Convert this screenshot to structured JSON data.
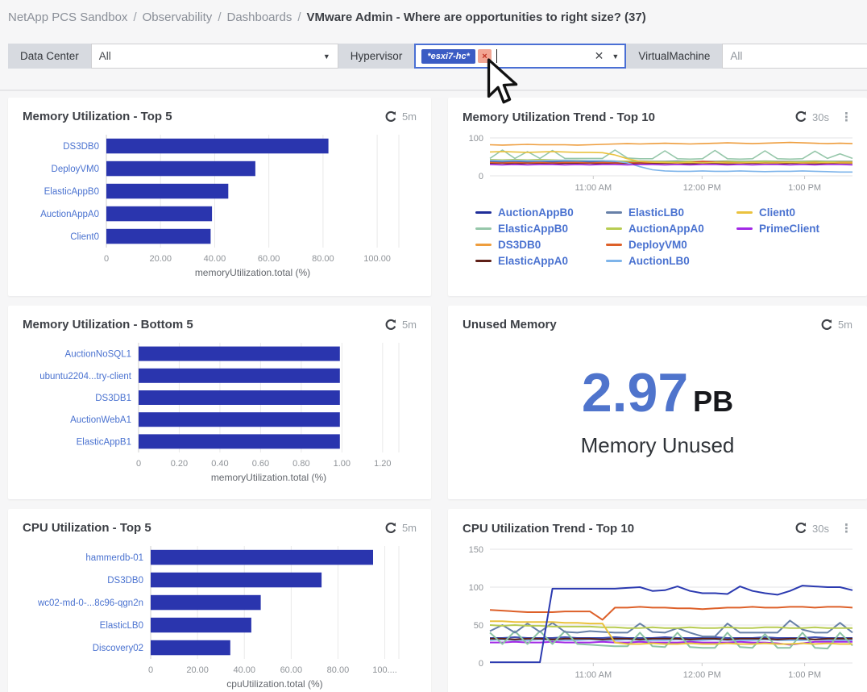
{
  "breadcrumb": {
    "separator": "/",
    "items": [
      {
        "label": "NetApp PCS Sandbox"
      },
      {
        "label": "Observability"
      },
      {
        "label": "Dashboards"
      }
    ],
    "current": "VMware Admin - Where are opportunities to right size? (37)"
  },
  "filters": {
    "data_center": {
      "label": "Data Center",
      "value": "All"
    },
    "hypervisor": {
      "label": "Hypervisor",
      "chip": "*esxi7-hc*",
      "delete_glyph": "×",
      "clear_glyph": "✕"
    },
    "virtual_machine": {
      "label": "VirtualMachine",
      "value": "All"
    }
  },
  "panels": {
    "mem_top5": {
      "title": "Memory Utilization - Top 5",
      "refresh": "5m"
    },
    "mem_trend": {
      "title": "Memory Utilization Trend - Top 10",
      "refresh": "30s"
    },
    "mem_bottom5": {
      "title": "Memory Utilization - Bottom 5",
      "refresh": "5m"
    },
    "unused_mem": {
      "title": "Unused Memory",
      "refresh": "5m",
      "value": "2.97",
      "unit": "PB",
      "caption": "Memory Unused"
    },
    "cpu_top5": {
      "title": "CPU Utilization - Top 5",
      "refresh": "5m"
    },
    "cpu_trend": {
      "title": "CPU Utilization Trend - Top 10",
      "refresh": "30s"
    }
  },
  "chart_data": {
    "mem_top5": {
      "type": "bar",
      "orientation": "horizontal",
      "title": "Memory Utilization - Top 5",
      "categories": [
        "DS3DB0",
        "DeployVM0",
        "ElasticAppB0",
        "AuctionAppA0",
        "Client0"
      ],
      "values": [
        82,
        55,
        45,
        39,
        38.5
      ],
      "xlabel": "memoryUtilization.total (%)",
      "xlim": [
        0,
        108
      ],
      "tick_values": [
        0,
        20,
        40,
        60,
        80,
        100
      ],
      "xticks": [
        "0",
        "20.00",
        "40.00",
        "60.00",
        "80.00",
        "100.00"
      ],
      "bar_color": "#2a35ae"
    },
    "mem_bottom5": {
      "type": "bar",
      "orientation": "horizontal",
      "title": "Memory Utilization - Bottom 5",
      "categories": [
        "AuctionNoSQL1",
        "ubuntu2204...try-client",
        "DS3DB1",
        "AuctionWebA1",
        "ElasticAppB1"
      ],
      "values": [
        0.99,
        0.99,
        0.99,
        0.99,
        0.99
      ],
      "xlabel": "memoryUtilization.total (%)",
      "xlim": [
        0,
        1.28
      ],
      "tick_values": [
        0,
        0.2,
        0.4,
        0.6,
        0.8,
        1.0,
        1.2
      ],
      "xticks": [
        "0",
        "0.20",
        "0.40",
        "0.60",
        "0.80",
        "1.00",
        "1.20"
      ],
      "bar_color": "#2a35ae"
    },
    "cpu_top5": {
      "type": "bar",
      "orientation": "horizontal",
      "title": "CPU Utilization - Top 5",
      "categories": [
        "hammerdb-01",
        "DS3DB0",
        "wc02-md-0-...8c96-qgn2n",
        "ElasticLB0",
        "Discovery02"
      ],
      "values": [
        95,
        73,
        47,
        43,
        34
      ],
      "xlabel": "cpuUtilization.total (%)",
      "xlim": [
        0,
        106
      ],
      "tick_values": [
        0,
        20,
        40,
        60,
        80,
        100
      ],
      "xticks": [
        "0",
        "20.00",
        "40.00",
        "60.00",
        "80.00",
        "100...."
      ],
      "bar_color": "#2a35ae"
    },
    "mem_trend": {
      "type": "line",
      "title": "Memory Utilization Trend - Top 10",
      "ylim": [
        0,
        100
      ],
      "yticks": [
        0,
        100
      ],
      "xticks": [
        "11:00 AM",
        "12:00 PM",
        "1:00 PM"
      ],
      "grid": true,
      "legend_position": "bottom",
      "series": [
        {
          "name": "AuctionAppB0",
          "color": "#1f2e99",
          "values": [
            37,
            36,
            37,
            36,
            37,
            36,
            36,
            37,
            36,
            36,
            35,
            36,
            36,
            37,
            36,
            36,
            37,
            36,
            36,
            36,
            37,
            36,
            36,
            37,
            36,
            36,
            37,
            36,
            36,
            36
          ]
        },
        {
          "name": "ElasticAppB0",
          "color": "#96c7aa",
          "values": [
            46,
            68,
            46,
            64,
            46,
            67,
            46,
            46,
            46,
            46,
            68,
            47,
            45,
            45,
            66,
            45,
            44,
            45,
            67,
            45,
            44,
            45,
            66,
            45,
            44,
            45,
            65,
            46,
            58,
            46
          ]
        },
        {
          "name": "DS3DB0",
          "color": "#ee9d3d",
          "values": [
            82,
            81,
            82,
            83,
            82,
            82,
            82,
            81,
            82,
            83,
            84,
            85,
            84,
            85,
            86,
            85,
            84,
            85,
            86,
            87,
            86,
            85,
            86,
            87,
            88,
            87,
            86,
            85,
            86,
            85
          ]
        },
        {
          "name": "ElasticAppA0",
          "color": "#5e1f17",
          "values": [
            33,
            33,
            32,
            33,
            33,
            32,
            33,
            33,
            33,
            32,
            33,
            33,
            32,
            33,
            33,
            33,
            32,
            33,
            33,
            32,
            33,
            33,
            33,
            32,
            33,
            33,
            32,
            33,
            33,
            33
          ]
        },
        {
          "name": "ElasticLB0",
          "color": "#6780a8",
          "values": [
            39,
            38,
            39,
            38,
            38,
            39,
            38,
            38,
            39,
            38,
            38,
            38,
            39,
            38,
            38,
            39,
            38,
            38,
            38,
            39,
            38,
            38,
            39,
            38,
            38,
            38,
            39,
            38,
            38,
            38
          ]
        },
        {
          "name": "AuctionAppA0",
          "color": "#b8cc52",
          "values": [
            43,
            42,
            43,
            42,
            43,
            42,
            41,
            41,
            40,
            40,
            39,
            38,
            38,
            37,
            37,
            37,
            38,
            37,
            37,
            38,
            37,
            37,
            38,
            37,
            37,
            37,
            38,
            37,
            37,
            37
          ]
        },
        {
          "name": "DeployVM0",
          "color": "#dd6029",
          "values": [
            35,
            34,
            35,
            34,
            35,
            34,
            35,
            35,
            34,
            35,
            34,
            35,
            34,
            35,
            35,
            34,
            35,
            38,
            36,
            35,
            34,
            35,
            34,
            35,
            35,
            34,
            35,
            34,
            35,
            35
          ]
        },
        {
          "name": "AuctionLB0",
          "color": "#7eb4ea",
          "values": [
            41,
            40,
            41,
            40,
            40,
            40,
            41,
            40,
            40,
            40,
            39,
            34,
            24,
            16,
            13,
            12,
            12,
            13,
            12,
            12,
            13,
            12,
            11,
            12,
            12,
            13,
            12,
            11,
            10,
            10
          ]
        },
        {
          "name": "Client0",
          "color": "#eac23e",
          "values": [
            63,
            64,
            63,
            62,
            63,
            64,
            63,
            62,
            62,
            61,
            55,
            45,
            38,
            36,
            35,
            34,
            35,
            34,
            35,
            34,
            34,
            35,
            34,
            34,
            35,
            34,
            34,
            35,
            34,
            34
          ]
        },
        {
          "name": "PrimeClient",
          "color": "#a229e6",
          "values": [
            30,
            29,
            30,
            29,
            30,
            30,
            29,
            30,
            29,
            30,
            30,
            29,
            30,
            30,
            29,
            30,
            29,
            30,
            30,
            29,
            30,
            29,
            30,
            30,
            29,
            30,
            29,
            30,
            30,
            29
          ]
        }
      ]
    },
    "cpu_trend": {
      "type": "line",
      "title": "CPU Utilization Trend - Top 10",
      "ylim": [
        0,
        150
      ],
      "yticks": [
        0,
        50,
        100,
        150
      ],
      "xticks": [
        "11:00 AM",
        "12:00 PM",
        "1:00 PM"
      ],
      "grid": true,
      "series": [
        {
          "color": "#7eb4ea",
          "values": [
            30,
            31,
            30,
            30,
            31,
            30,
            30,
            30,
            31,
            30,
            30,
            31,
            30,
            30,
            30,
            31,
            30,
            30,
            31,
            30,
            30,
            30,
            31,
            30,
            30,
            30,
            31,
            30,
            30,
            30
          ]
        },
        {
          "color": "#3f51b5",
          "values": [
            33,
            33,
            34,
            33,
            33,
            33,
            34,
            33,
            33,
            33,
            34,
            33,
            33,
            33,
            34,
            33,
            33,
            33,
            34,
            33,
            33,
            33,
            34,
            33,
            33,
            33,
            34,
            33,
            33,
            33
          ]
        },
        {
          "color": "#5e1f17",
          "values": [
            32,
            32,
            31,
            32,
            32,
            31,
            32,
            32,
            32,
            31,
            32,
            32,
            31,
            32,
            32,
            32,
            31,
            32,
            32,
            31,
            32,
            32,
            32,
            31,
            32,
            32,
            31,
            32,
            32,
            32
          ]
        },
        {
          "color": "#a229e6",
          "values": [
            27,
            27,
            28,
            27,
            27,
            28,
            27,
            27,
            27,
            28,
            27,
            27,
            28,
            27,
            27,
            27,
            28,
            27,
            27,
            27,
            28,
            27,
            27,
            26,
            24,
            26,
            28,
            28,
            28,
            28
          ]
        },
        {
          "color": "#8cc3a4",
          "values": [
            40,
            25,
            42,
            25,
            42,
            25,
            42,
            25,
            24,
            23,
            22,
            22,
            40,
            22,
            21,
            40,
            21,
            20,
            20,
            40,
            21,
            20,
            38,
            20,
            20,
            40,
            20,
            19,
            40,
            23
          ]
        },
        {
          "color": "#6780a8",
          "values": [
            42,
            50,
            40,
            52,
            41,
            53,
            41,
            40,
            42,
            41,
            40,
            40,
            52,
            41,
            40,
            46,
            40,
            35,
            35,
            52,
            40,
            40,
            40,
            40,
            56,
            44,
            40,
            40,
            53,
            40
          ]
        },
        {
          "color": "#b8cc52",
          "values": [
            50,
            49,
            50,
            49,
            49,
            48,
            48,
            48,
            48,
            47,
            47,
            46,
            46,
            47,
            46,
            46,
            47,
            46,
            46,
            47,
            46,
            46,
            47,
            47,
            46,
            46,
            47,
            46,
            46,
            46
          ]
        },
        {
          "color": "#eac23e",
          "values": [
            55,
            55,
            54,
            54,
            54,
            54,
            53,
            53,
            52,
            52,
            27,
            25,
            25,
            26,
            25,
            25,
            26,
            25,
            25,
            26,
            25,
            25,
            26,
            25,
            25,
            26,
            25,
            26,
            25,
            25
          ]
        },
        {
          "color": "#dd6029",
          "values": [
            70,
            69,
            68,
            67,
            67,
            67,
            68,
            68,
            68,
            57,
            73,
            73,
            74,
            73,
            73,
            72,
            72,
            71,
            72,
            73,
            73,
            74,
            73,
            73,
            74,
            74,
            73,
            74,
            74,
            73
          ]
        },
        {
          "color": "#2b3ab0",
          "values": [
            1,
            1,
            1,
            1,
            1,
            98,
            98,
            98,
            98,
            98,
            98,
            99,
            100,
            95,
            96,
            101,
            95,
            92,
            92,
            91,
            101,
            95,
            92,
            90,
            95,
            102,
            101,
            100,
            100,
            96
          ]
        }
      ]
    }
  }
}
